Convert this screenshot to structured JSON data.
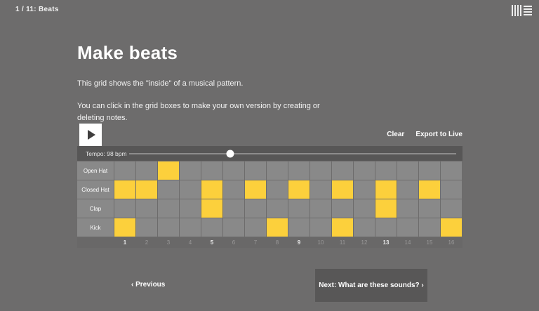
{
  "header": {
    "progress": "1 / 11: Beats"
  },
  "logo": {
    "icon": "ableton-logo"
  },
  "main": {
    "title": "Make beats",
    "para1": "This grid shows the \"inside\" of a musical pattern.",
    "para2": "You can click in the grid boxes to make your own version by creating or deleting notes."
  },
  "sequencer": {
    "play_icon": "play-triangle",
    "clear_label": "Clear",
    "export_label": "Export to Live",
    "tempo_label": "Tempo: 98 bpm",
    "tempo_value_bpm": 98,
    "tempo_handle_percent": 31,
    "steps": 16,
    "step_numbers": [
      "1",
      "2",
      "3",
      "4",
      "5",
      "6",
      "7",
      "8",
      "9",
      "10",
      "11",
      "12",
      "13",
      "14",
      "15",
      "16"
    ],
    "accent_steps": [
      1,
      5,
      9,
      13
    ],
    "rows": [
      {
        "label": "Open Hat",
        "active_steps": [
          3
        ]
      },
      {
        "label": "Closed Hat",
        "active_steps": [
          1,
          2,
          5,
          7,
          9,
          11,
          13,
          15
        ]
      },
      {
        "label": "Clap",
        "active_steps": [
          5,
          13
        ]
      },
      {
        "label": "Kick",
        "active_steps": [
          1,
          8,
          11,
          16
        ]
      }
    ]
  },
  "footer": {
    "previous_label": "‹ Previous",
    "next_label": "Next: What are these sounds? ›"
  },
  "colors": {
    "background": "#6d6c6c",
    "tempo_bar": "#575656",
    "grid_cell": "#898989",
    "active_cell": "#fcd03c",
    "next_button": "#585757",
    "text": "#ffffff"
  }
}
